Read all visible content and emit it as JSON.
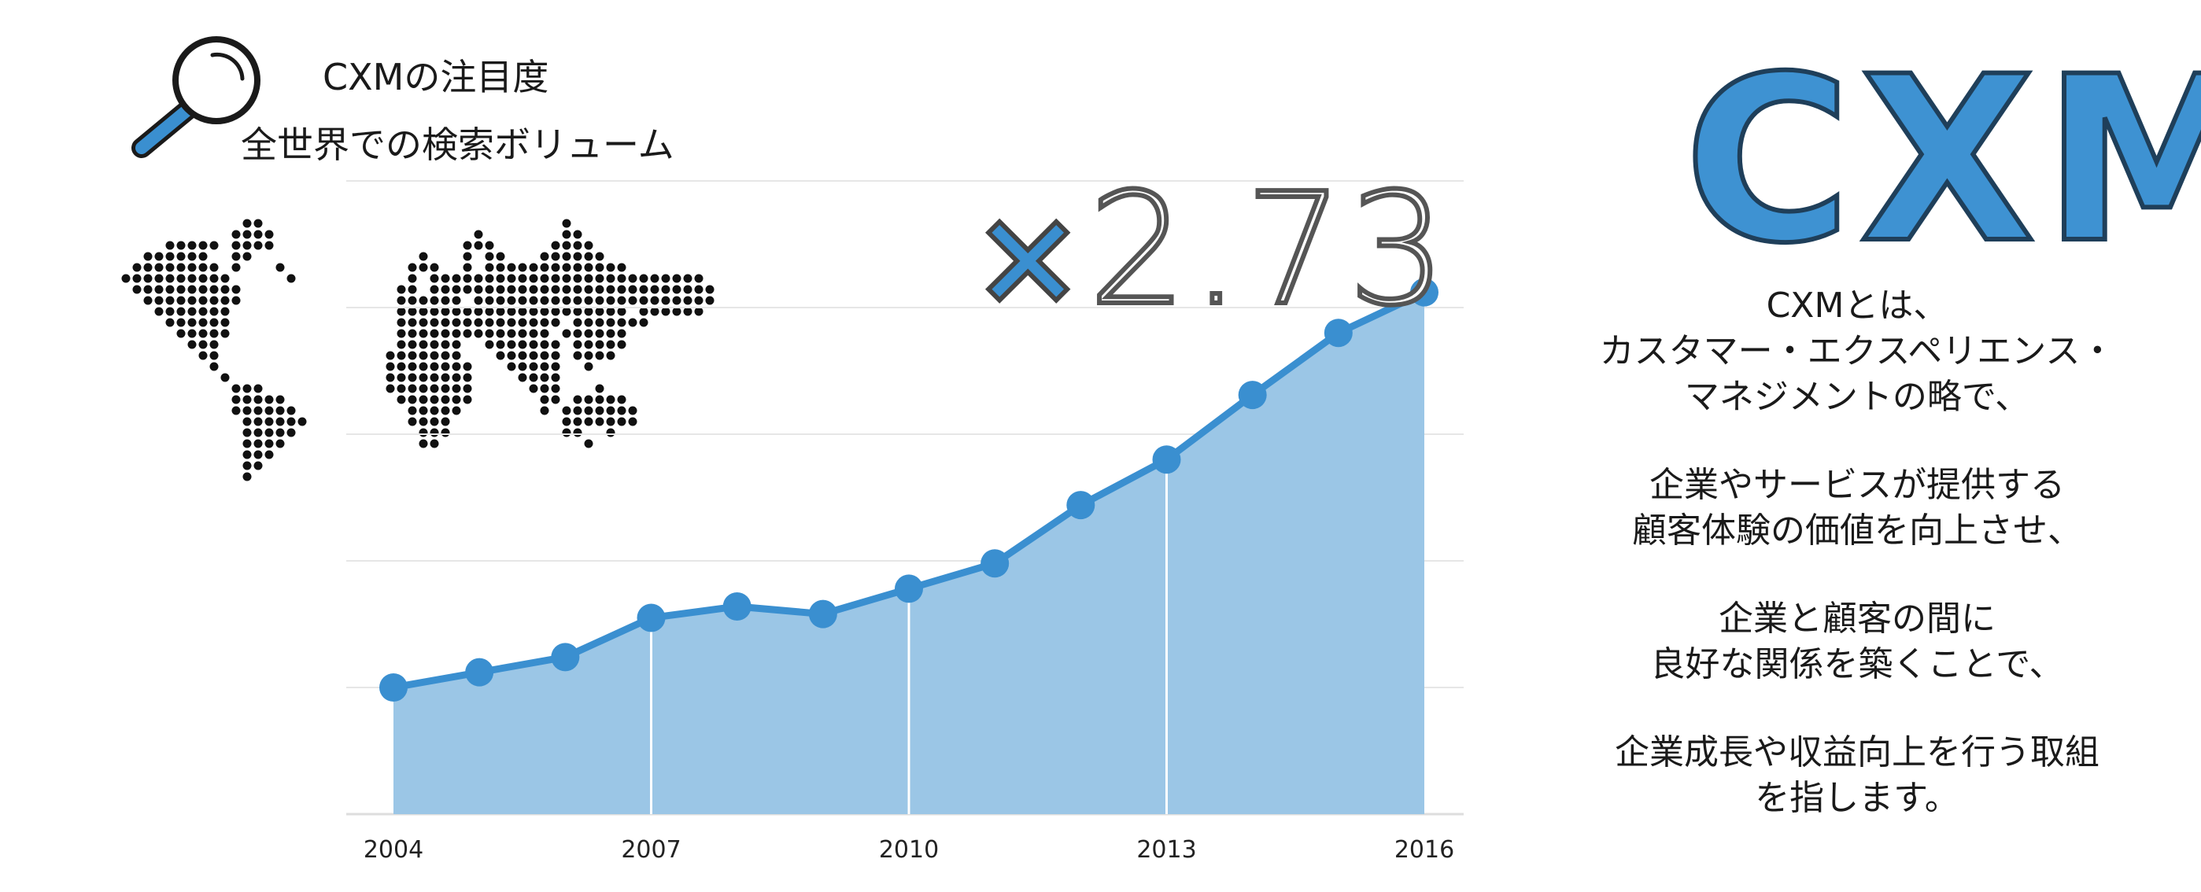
{
  "header": {
    "title_line1": "CXMの注目度",
    "title_line2": "全世界での検索ボリューム"
  },
  "multiplier": {
    "sign": "×",
    "value": "2.73"
  },
  "logo": {
    "text": "CXM"
  },
  "description": {
    "paragraphs": [
      [
        "CXMとは、",
        "カスタマー・エクスペリエンス・",
        "マネジメントの略で、"
      ],
      [
        "企業やサービスが提供する",
        "顧客体験の価値を向上させ、"
      ],
      [
        "企業と顧客の間に",
        "良好な関係を築くことで、"
      ],
      [
        "企業成長や収益向上を行う取組",
        "を指します。"
      ]
    ]
  },
  "colors": {
    "line": "#3a8fd0",
    "area": "#9bc6e6",
    "grid": "#e6e6e6"
  },
  "icons": {
    "search": "magnifier-icon",
    "map": "world-map-icon"
  },
  "chart_data": {
    "type": "area",
    "x": [
      2004,
      2005,
      2006,
      2007,
      2008,
      2009,
      2010,
      2011,
      2012,
      2013,
      2014,
      2015,
      2016
    ],
    "x_tick_labels": [
      "2004",
      "2007",
      "2010",
      "2013",
      "2016"
    ],
    "series": [
      {
        "values": [
          100,
          112,
          124,
          155,
          164,
          158,
          178,
          198,
          244,
          280,
          331,
          380,
          412
        ]
      }
    ],
    "ylim": [
      0,
      500
    ],
    "grid": true,
    "vertical_markers": [
      2007,
      2010,
      2013
    ]
  }
}
